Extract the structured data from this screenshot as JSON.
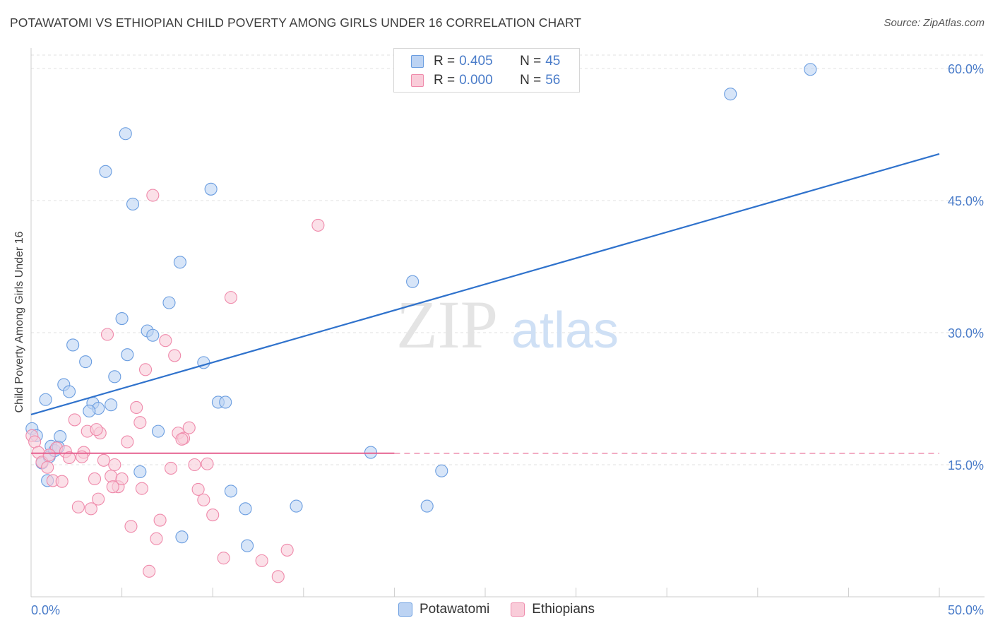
{
  "title": "POTAWATOMI VS ETHIOPIAN CHILD POVERTY AMONG GIRLS UNDER 16 CORRELATION CHART",
  "source": "Source: ZipAtlas.com",
  "watermark": {
    "zip": "ZIP",
    "atlas": "atlas"
  },
  "stats": [
    {
      "r_label": "R = ",
      "r_value": "0.405",
      "n_label": "N = ",
      "n_value": "45",
      "color": "#6a9de0",
      "fill": "#bcd3f3"
    },
    {
      "r_label": "R = ",
      "r_value": "0.000",
      "n_label": "N = ",
      "n_value": "56",
      "color": "#ef8aab",
      "fill": "#f9ccd9"
    }
  ],
  "legend": [
    {
      "label": "Potawatomi",
      "color": "#6a9de0",
      "fill": "#bcd3f3"
    },
    {
      "label": "Ethiopians",
      "color": "#ef8aab",
      "fill": "#f9ccd9"
    }
  ],
  "chart_data": {
    "type": "scatter",
    "title": "POTAWATOMI VS ETHIOPIAN CHILD POVERTY AMONG GIRLS UNDER 16 CORRELATION CHART",
    "xlabel": "",
    "ylabel": "Child Poverty Among Girls Under 16",
    "xlim": [
      0,
      50
    ],
    "ylim": [
      0,
      60
    ],
    "x_tick_labels": [
      "0.0%",
      "50.0%"
    ],
    "y_ticks": [
      {
        "value": 15,
        "label": "15.0%"
      },
      {
        "value": 30,
        "label": "30.0%"
      },
      {
        "value": 45,
        "label": "45.0%"
      },
      {
        "value": 60,
        "label": "60.0%"
      }
    ],
    "grid": true,
    "series": [
      {
        "name": "Potawatomi",
        "color": "#6a9de0",
        "fill": "#bcd3f3",
        "trend": {
          "x": [
            0,
            50
          ],
          "y": [
            20.7,
            50.3
          ],
          "dashed_to": 50
        },
        "points": [
          [
            0.05,
            19.1
          ],
          [
            0.3,
            18.3
          ],
          [
            0.6,
            15.2
          ],
          [
            0.8,
            22.4
          ],
          [
            1.0,
            15.9
          ],
          [
            1.1,
            17.1
          ],
          [
            1.3,
            16.6
          ],
          [
            1.6,
            18.2
          ],
          [
            1.8,
            24.1
          ],
          [
            2.3,
            28.6
          ],
          [
            3.0,
            26.7
          ],
          [
            3.4,
            22.0
          ],
          [
            3.7,
            21.4
          ],
          [
            4.1,
            48.3
          ],
          [
            4.4,
            21.8
          ],
          [
            4.6,
            25.0
          ],
          [
            5.0,
            31.6
          ],
          [
            5.3,
            27.5
          ],
          [
            5.6,
            44.6
          ],
          [
            6.0,
            14.2
          ],
          [
            6.4,
            30.2
          ],
          [
            6.7,
            29.7
          ],
          [
            7.0,
            18.8
          ],
          [
            7.6,
            33.4
          ],
          [
            8.2,
            38.0
          ],
          [
            8.3,
            6.8
          ],
          [
            9.5,
            26.6
          ],
          [
            9.9,
            46.3
          ],
          [
            10.3,
            22.1
          ],
          [
            10.7,
            22.1
          ],
          [
            11.0,
            12.0
          ],
          [
            11.8,
            10.0
          ],
          [
            11.9,
            5.8
          ],
          [
            14.6,
            10.3
          ],
          [
            18.7,
            16.4
          ],
          [
            21.0,
            35.8
          ],
          [
            21.8,
            10.3
          ],
          [
            22.6,
            14.3
          ],
          [
            38.5,
            57.1
          ],
          [
            42.9,
            59.9
          ],
          [
            3.2,
            21.1
          ],
          [
            2.1,
            23.3
          ],
          [
            1.5,
            17.0
          ],
          [
            0.9,
            13.2
          ],
          [
            5.2,
            52.6
          ]
        ]
      },
      {
        "name": "Ethiopians",
        "color": "#ef8aab",
        "fill": "#f9ccd9",
        "trend": {
          "x": [
            0,
            50
          ],
          "y": [
            16.3,
            16.3
          ],
          "dashed_from": 20
        },
        "points": [
          [
            0.05,
            18.3
          ],
          [
            0.2,
            17.6
          ],
          [
            0.4,
            16.4
          ],
          [
            0.6,
            15.3
          ],
          [
            0.9,
            14.7
          ],
          [
            1.2,
            13.2
          ],
          [
            1.4,
            16.9
          ],
          [
            1.7,
            13.1
          ],
          [
            1.9,
            16.5
          ],
          [
            2.1,
            15.8
          ],
          [
            2.4,
            20.1
          ],
          [
            2.6,
            10.2
          ],
          [
            2.9,
            16.4
          ],
          [
            3.1,
            18.8
          ],
          [
            3.3,
            10.0
          ],
          [
            3.5,
            13.4
          ],
          [
            3.7,
            11.1
          ],
          [
            3.8,
            18.6
          ],
          [
            4.0,
            15.5
          ],
          [
            4.2,
            29.8
          ],
          [
            4.4,
            13.7
          ],
          [
            4.6,
            15.0
          ],
          [
            4.8,
            12.5
          ],
          [
            5.0,
            13.4
          ],
          [
            5.3,
            17.6
          ],
          [
            5.5,
            8.0
          ],
          [
            5.8,
            21.5
          ],
          [
            6.0,
            19.8
          ],
          [
            6.3,
            25.8
          ],
          [
            6.5,
            2.9
          ],
          [
            6.7,
            45.6
          ],
          [
            6.9,
            6.6
          ],
          [
            7.1,
            8.7
          ],
          [
            7.4,
            29.1
          ],
          [
            7.7,
            14.6
          ],
          [
            7.9,
            27.4
          ],
          [
            8.1,
            18.6
          ],
          [
            8.4,
            18.0
          ],
          [
            8.7,
            19.2
          ],
          [
            9.0,
            15.0
          ],
          [
            9.2,
            12.2
          ],
          [
            9.5,
            11.0
          ],
          [
            9.7,
            15.1
          ],
          [
            10.0,
            9.3
          ],
          [
            10.6,
            4.4
          ],
          [
            11.0,
            34.0
          ],
          [
            12.7,
            4.1
          ],
          [
            13.6,
            2.3
          ],
          [
            14.1,
            5.3
          ],
          [
            15.8,
            42.2
          ],
          [
            1.0,
            16.1
          ],
          [
            2.8,
            15.9
          ],
          [
            6.1,
            12.3
          ],
          [
            8.3,
            17.9
          ],
          [
            4.5,
            12.5
          ],
          [
            3.6,
            19.0
          ]
        ]
      }
    ]
  }
}
